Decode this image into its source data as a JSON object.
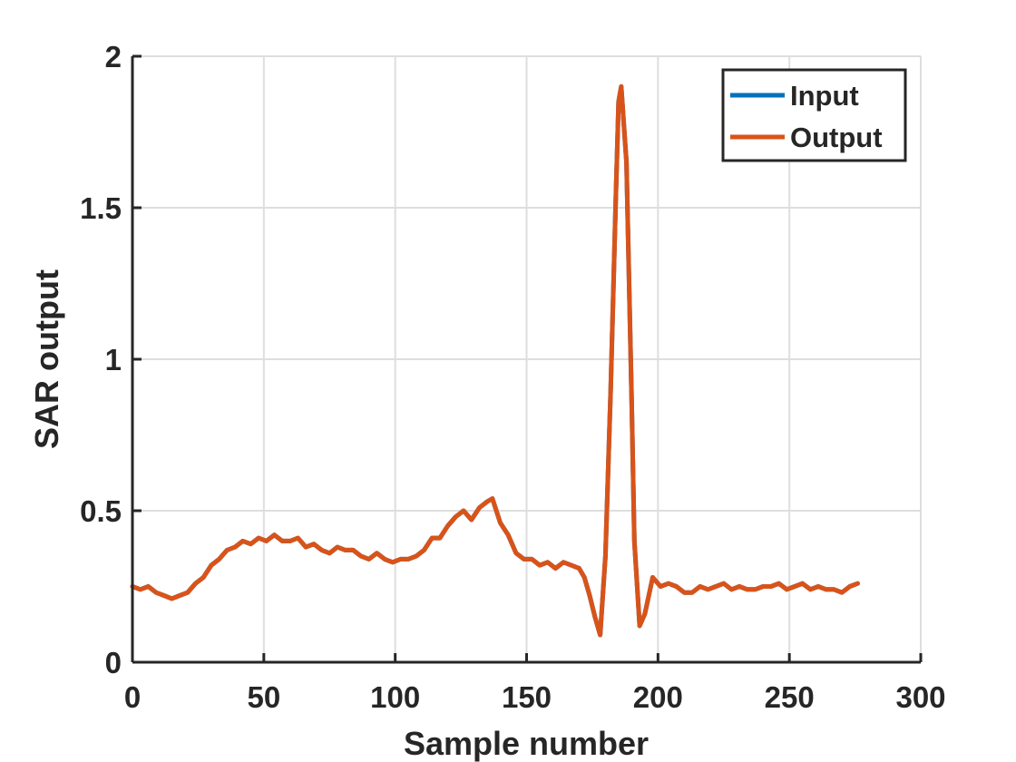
{
  "chart_data": {
    "type": "line",
    "xlabel": "Sample number",
    "ylabel": "SAR output",
    "xlim": [
      0,
      300
    ],
    "ylim": [
      0,
      2
    ],
    "xticks": [
      0,
      50,
      100,
      150,
      200,
      250,
      300
    ],
    "yticks": [
      0,
      0.5,
      1,
      1.5,
      2
    ],
    "xtick_labels": [
      "0",
      "50",
      "100",
      "150",
      "200",
      "250",
      "300"
    ],
    "ytick_labels": [
      "0",
      "0.5",
      "1",
      "1.5",
      "2"
    ],
    "grid": true,
    "legend_position": "top-right",
    "series": [
      {
        "name": "Input",
        "color": "#0072BD",
        "x": [
          0,
          3,
          6,
          9,
          12,
          15,
          18,
          21,
          24,
          27,
          30,
          33,
          36,
          39,
          42,
          45,
          48,
          51,
          54,
          57,
          60,
          63,
          66,
          69,
          72,
          75,
          78,
          81,
          84,
          87,
          90,
          93,
          96,
          99,
          102,
          105,
          108,
          111,
          114,
          117,
          120,
          123,
          126,
          129,
          132,
          135,
          137,
          140,
          143,
          146,
          149,
          152,
          155,
          158,
          161,
          164,
          167,
          170,
          172,
          174,
          176,
          178,
          180,
          182,
          184,
          185,
          186,
          188,
          190,
          191,
          193,
          195,
          198,
          201,
          204,
          207,
          210,
          213,
          216,
          219,
          222,
          225,
          228,
          231,
          234,
          237,
          240,
          243,
          246,
          249,
          252,
          255,
          258,
          261,
          264,
          267,
          270,
          273,
          276
        ],
        "y": [
          0.25,
          0.24,
          0.25,
          0.23,
          0.22,
          0.21,
          0.22,
          0.23,
          0.26,
          0.28,
          0.32,
          0.34,
          0.37,
          0.38,
          0.4,
          0.39,
          0.41,
          0.4,
          0.42,
          0.4,
          0.4,
          0.41,
          0.38,
          0.39,
          0.37,
          0.36,
          0.38,
          0.37,
          0.37,
          0.35,
          0.34,
          0.36,
          0.34,
          0.33,
          0.34,
          0.34,
          0.35,
          0.37,
          0.41,
          0.41,
          0.45,
          0.48,
          0.5,
          0.47,
          0.51,
          0.53,
          0.54,
          0.46,
          0.42,
          0.36,
          0.34,
          0.34,
          0.32,
          0.33,
          0.31,
          0.33,
          0.32,
          0.31,
          0.28,
          0.22,
          0.15,
          0.09,
          0.35,
          0.9,
          1.55,
          1.85,
          1.9,
          1.65,
          0.85,
          0.4,
          0.12,
          0.16,
          0.28,
          0.25,
          0.26,
          0.25,
          0.23,
          0.23,
          0.25,
          0.24,
          0.25,
          0.26,
          0.24,
          0.25,
          0.24,
          0.24,
          0.25,
          0.25,
          0.26,
          0.24,
          0.25,
          0.26,
          0.24,
          0.25,
          0.24,
          0.24,
          0.23,
          0.25,
          0.26
        ]
      },
      {
        "name": "Output",
        "color": "#D95319",
        "x": [
          0,
          3,
          6,
          9,
          12,
          15,
          18,
          21,
          24,
          27,
          30,
          33,
          36,
          39,
          42,
          45,
          48,
          51,
          54,
          57,
          60,
          63,
          66,
          69,
          72,
          75,
          78,
          81,
          84,
          87,
          90,
          93,
          96,
          99,
          102,
          105,
          108,
          111,
          114,
          117,
          120,
          123,
          126,
          129,
          132,
          135,
          137,
          140,
          143,
          146,
          149,
          152,
          155,
          158,
          161,
          164,
          167,
          170,
          172,
          174,
          176,
          178,
          180,
          182,
          184,
          185,
          186,
          188,
          190,
          191,
          193,
          195,
          198,
          201,
          204,
          207,
          210,
          213,
          216,
          219,
          222,
          225,
          228,
          231,
          234,
          237,
          240,
          243,
          246,
          249,
          252,
          255,
          258,
          261,
          264,
          267,
          270,
          273,
          276
        ],
        "y": [
          0.25,
          0.24,
          0.25,
          0.23,
          0.22,
          0.21,
          0.22,
          0.23,
          0.26,
          0.28,
          0.32,
          0.34,
          0.37,
          0.38,
          0.4,
          0.39,
          0.41,
          0.4,
          0.42,
          0.4,
          0.4,
          0.41,
          0.38,
          0.39,
          0.37,
          0.36,
          0.38,
          0.37,
          0.37,
          0.35,
          0.34,
          0.36,
          0.34,
          0.33,
          0.34,
          0.34,
          0.35,
          0.37,
          0.41,
          0.41,
          0.45,
          0.48,
          0.5,
          0.47,
          0.51,
          0.53,
          0.54,
          0.46,
          0.42,
          0.36,
          0.34,
          0.34,
          0.32,
          0.33,
          0.31,
          0.33,
          0.32,
          0.31,
          0.28,
          0.22,
          0.15,
          0.09,
          0.35,
          0.9,
          1.55,
          1.85,
          1.9,
          1.65,
          0.85,
          0.4,
          0.12,
          0.16,
          0.28,
          0.25,
          0.26,
          0.25,
          0.23,
          0.23,
          0.25,
          0.24,
          0.25,
          0.26,
          0.24,
          0.25,
          0.24,
          0.24,
          0.25,
          0.25,
          0.26,
          0.24,
          0.25,
          0.26,
          0.24,
          0.25,
          0.24,
          0.24,
          0.23,
          0.25,
          0.26
        ]
      }
    ]
  }
}
